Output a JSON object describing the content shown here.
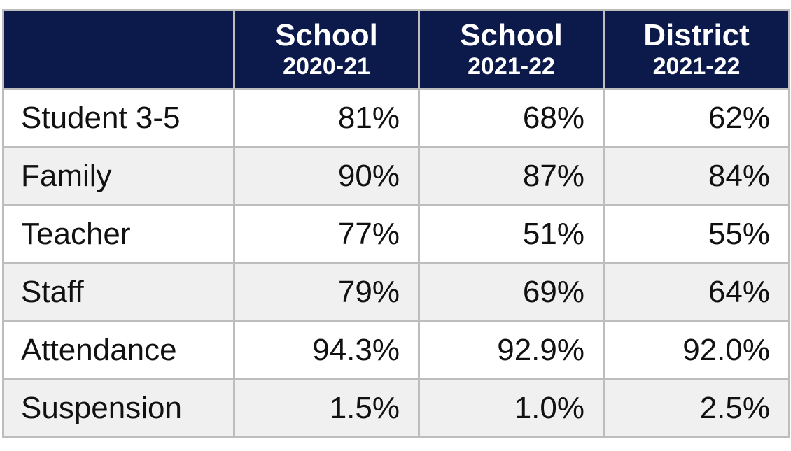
{
  "table": {
    "columns": [
      {
        "line1": "School",
        "line2": "2020-21"
      },
      {
        "line1": "School",
        "line2": "2021-22"
      },
      {
        "line1": "District",
        "line2": "2021-22"
      }
    ],
    "rows": [
      {
        "label": "Student 3-5",
        "values": [
          "81%",
          "68%",
          "62%"
        ]
      },
      {
        "label": "Family",
        "values": [
          "90%",
          "87%",
          "84%"
        ]
      },
      {
        "label": "Teacher",
        "values": [
          "77%",
          "51%",
          "55%"
        ]
      },
      {
        "label": "Staff",
        "values": [
          "79%",
          "69%",
          "64%"
        ]
      },
      {
        "label": "Attendance",
        "values": [
          "94.3%",
          "92.9%",
          "92.0%"
        ]
      },
      {
        "label": "Suspension",
        "values": [
          "1.5%",
          "1.0%",
          "2.5%"
        ]
      }
    ]
  }
}
